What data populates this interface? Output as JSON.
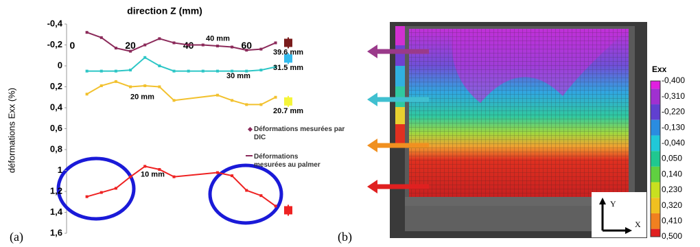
{
  "chart_data": {
    "type": "line",
    "title": "direction Z (mm)",
    "y_label": "déformations Exx  (%)",
    "panel_label": "(a)",
    "xlim": [
      -2,
      72
    ],
    "xticks": [
      0,
      20,
      40,
      60
    ],
    "ylim": [
      -0.4,
      1.6
    ],
    "y_inverted": true,
    "yticks": [
      {
        "value": -0.4,
        "label": "-0,4"
      },
      {
        "value": -0.2,
        "label": "-0,2"
      },
      {
        "value": 0,
        "label": "0"
      },
      {
        "value": 0.2,
        "label": "0,2"
      },
      {
        "value": 0.4,
        "label": "0,4"
      },
      {
        "value": 0.6,
        "label": "0,6"
      },
      {
        "value": 0.8,
        "label": "0,8"
      },
      {
        "value": 1,
        "label": "1"
      },
      {
        "value": 1.2,
        "label": "1,2"
      },
      {
        "value": 1.4,
        "label": "1,4"
      },
      {
        "value": 1.6,
        "label": "1,6"
      }
    ],
    "series": [
      {
        "name": "40 mm",
        "color": "#8b2a5a",
        "x": [
          5,
          10,
          15,
          20,
          25,
          30,
          35,
          40,
          45,
          50,
          55,
          60,
          65,
          70
        ],
        "values": [
          -0.32,
          -0.27,
          -0.17,
          -0.14,
          -0.2,
          -0.26,
          -0.22,
          -0.2,
          -0.2,
          -0.19,
          -0.18,
          -0.15,
          -0.16,
          -0.22
        ]
      },
      {
        "name": "30 mm",
        "color": "#2cc6c6",
        "x": [
          5,
          10,
          15,
          20,
          25,
          30,
          35,
          40,
          45,
          50,
          55,
          60,
          65,
          70
        ],
        "values": [
          0.05,
          0.05,
          0.05,
          0.04,
          -0.08,
          0.0,
          0.05,
          0.05,
          0.05,
          0.05,
          0.05,
          0.05,
          0.04,
          0.01
        ]
      },
      {
        "name": "20 mm",
        "color": "#f2c12e",
        "x": [
          5,
          10,
          15,
          20,
          25,
          30,
          35,
          50,
          55,
          60,
          65,
          70
        ],
        "values": [
          0.27,
          0.19,
          0.15,
          0.2,
          0.19,
          0.2,
          0.33,
          0.28,
          0.33,
          0.37,
          0.37,
          0.3
        ]
      },
      {
        "name": "10 mm",
        "color": "#ee2222",
        "x": [
          5,
          10,
          15,
          20,
          25,
          30,
          35,
          50,
          55,
          60,
          65,
          70
        ],
        "values": [
          1.25,
          1.21,
          1.17,
          1.06,
          0.96,
          0.99,
          1.06,
          1.02,
          1.05,
          1.19,
          1.24,
          1.34
        ]
      }
    ],
    "palmer": [
      {
        "label": "39.6 mm",
        "color": "#7a1c1c",
        "value": -0.22
      },
      {
        "label": "31.5 mm",
        "color": "#33bbee",
        "value": -0.07
      },
      {
        "label": "20.7 mm",
        "color": "#f5f53a",
        "value": 0.34
      },
      {
        "label": null,
        "color": "#ee2222",
        "value": 1.38
      }
    ],
    "legend": [
      "Déformations mesurées par DIC",
      "Déformations mesurées au palmer"
    ]
  },
  "image_panel": {
    "panel_label": "(b)",
    "colorbar_title": "Exx",
    "colorbar_labels": [
      "-0,400",
      "-0,310",
      "-0,220",
      "-0,130",
      "-0,040",
      "0,050",
      "0,140",
      "0,230",
      "0,320",
      "0,410",
      "0,500"
    ],
    "colorbar_colors": [
      "#e020e0",
      "#a030d0",
      "#6040d0",
      "#2a8ce0",
      "#20c8d8",
      "#20c890",
      "#60d040",
      "#c8e020",
      "#f0c020",
      "#f08020",
      "#e02020"
    ],
    "inset_axes": {
      "y": "Y",
      "x": "X"
    }
  }
}
